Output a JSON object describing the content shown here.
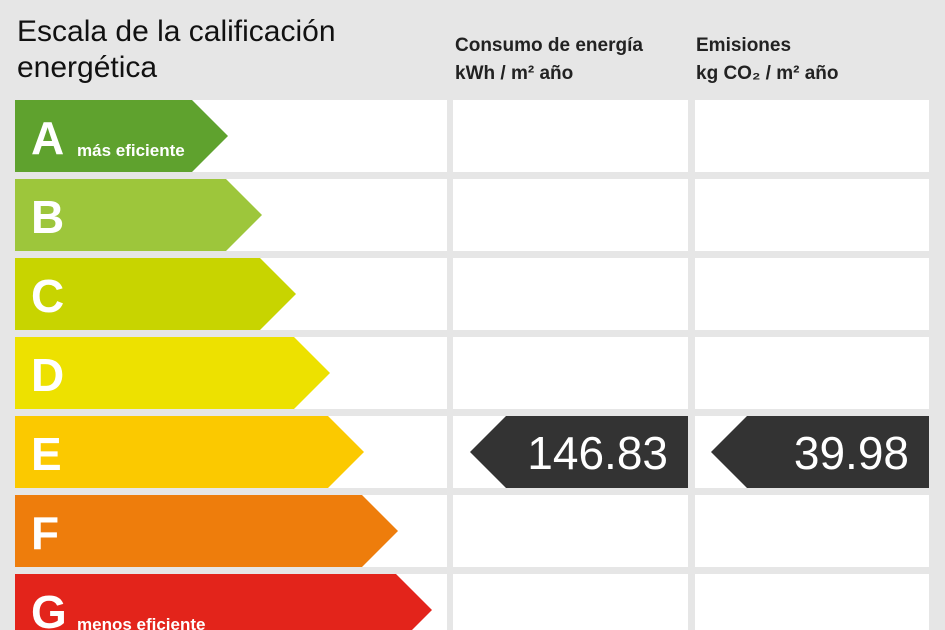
{
  "header": {
    "title": "Escala de la calificación energética",
    "columns": [
      {
        "title": "Consumo de energía",
        "unit": "kWh / m² año"
      },
      {
        "title": "Emisiones",
        "unit": "kg CO₂ / m² año"
      }
    ]
  },
  "scale": [
    {
      "letter": "A",
      "note": "más eficiente",
      "color": "#5fa22e"
    },
    {
      "letter": "B",
      "color": "#9dc63b"
    },
    {
      "letter": "C",
      "color": "#c8d400"
    },
    {
      "letter": "D",
      "color": "#ede100"
    },
    {
      "letter": "E",
      "color": "#fbc900",
      "consumption": 146.83,
      "emissions": 39.98
    },
    {
      "letter": "F",
      "color": "#ee7d0c"
    },
    {
      "letter": "G",
      "note": "menos eficiente",
      "color": "#e3241b"
    }
  ]
}
